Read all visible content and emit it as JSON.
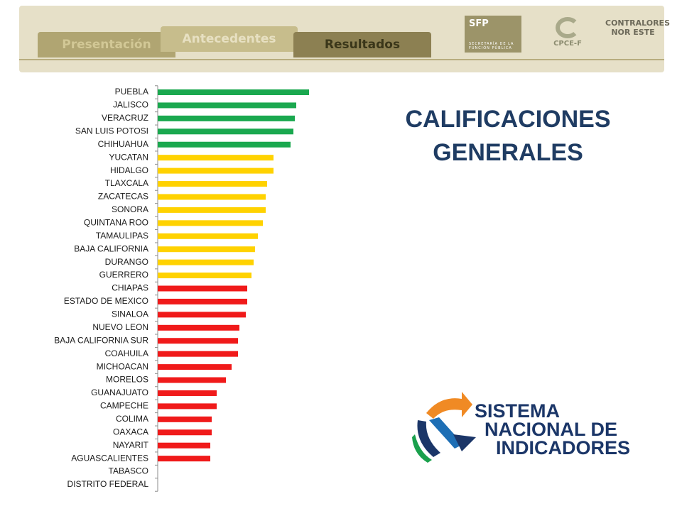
{
  "tabs": [
    "Presentación",
    "Antecedentes",
    "Resultados"
  ],
  "logos": {
    "sfp": "SFP",
    "sfp_subtitle": "SECRETARÍA DE LA FUNCIÓN PÚBLICA",
    "cpce": "CPCE-F",
    "contralores": "CONTRALORES NOR ESTE"
  },
  "sni": [
    "SISTEMA",
    "NACIONAL DE",
    "INDICADORES"
  ],
  "chart_data": {
    "type": "bar",
    "orientation": "horizontal",
    "title": "CALIFICACIONES GENERALES",
    "categories": [
      "PUEBLA",
      "JALISCO",
      "VERACRUZ",
      "SAN LUIS POTOSI",
      "CHIHUAHUA",
      "YUCATAN",
      "HIDALGO",
      "TLAXCALA",
      "ZACATECAS",
      "SONORA",
      "QUINTANA ROO",
      "TAMAULIPAS",
      "BAJA CALIFORNIA",
      "DURANGO",
      "GUERRERO",
      "CHIAPAS",
      "ESTADO DE MEXICO",
      "SINALOA",
      "NUEVO LEON",
      "BAJA CALIFORNIA SUR",
      "COAHUILA",
      "MICHOACAN",
      "MORELOS",
      "GUANAJUATO",
      "CAMPECHE",
      "COLIMA",
      "OAXACA",
      "NAYARIT",
      "AGUASCALIENTES",
      "TABASCO",
      "DISTRITO FEDERAL"
    ],
    "values": [
      213,
      195,
      193,
      191,
      187,
      163,
      163,
      154,
      152,
      152,
      148,
      141,
      137,
      135,
      132,
      126,
      126,
      124,
      115,
      113,
      113,
      104,
      96,
      83,
      83,
      76,
      76,
      74,
      74,
      0,
      0
    ],
    "colors": [
      "#1aa84f",
      "#1aa84f",
      "#1aa84f",
      "#1aa84f",
      "#1aa84f",
      "#ffd200",
      "#ffd200",
      "#ffd200",
      "#ffd200",
      "#ffd200",
      "#ffd200",
      "#ffd200",
      "#ffd200",
      "#ffd200",
      "#ffd200",
      "#f01a1a",
      "#f01a1a",
      "#f01a1a",
      "#f01a1a",
      "#f01a1a",
      "#f01a1a",
      "#f01a1a",
      "#f01a1a",
      "#f01a1a",
      "#f01a1a",
      "#f01a1a",
      "#f01a1a",
      "#f01a1a",
      "#f01a1a",
      "#f01a1a",
      "#f01a1a"
    ],
    "xlim": [
      0,
      250
    ]
  }
}
